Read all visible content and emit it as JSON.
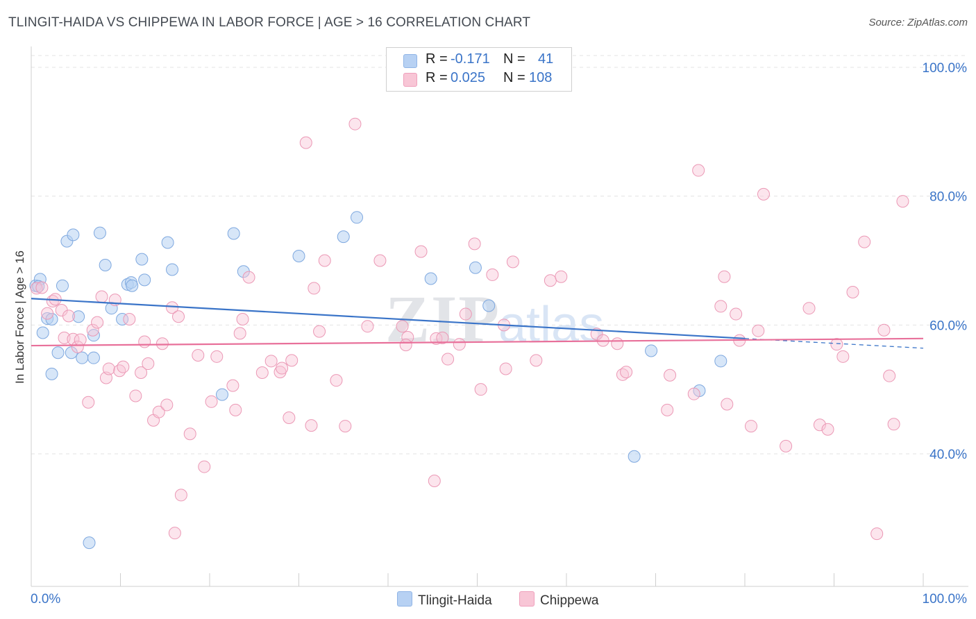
{
  "header": {
    "title": "TLINGIT-HAIDA VS CHIPPEWA IN LABOR FORCE | AGE > 16 CORRELATION CHART",
    "source": "Source: ZipAtlas.com"
  },
  "legend": {
    "r_label": "R =",
    "n_label": "N =",
    "rows": [
      {
        "r": "-0.171",
        "n": "41",
        "color": "#9fc3ef"
      },
      {
        "r": "0.025",
        "n": "108",
        "color": "#f5b3c8"
      }
    ]
  },
  "watermark": {
    "zip": "ZIP",
    "atlas": "atlas"
  },
  "colors": {
    "blue": "#3a74c8",
    "pink": "#e8709a",
    "blue_fill": "#b7d1f3",
    "pink_fill": "#f8c6d6"
  },
  "chart_data": {
    "type": "scatter",
    "title": "TLINGIT-HAIDA VS CHIPPEWA IN LABOR FORCE | AGE > 16 CORRELATION CHART",
    "ylabel": "In Labor Force | Age > 16",
    "xlabel": "",
    "xlim": [
      0,
      100
    ],
    "ylim": [
      20,
      102
    ],
    "x_tick_labels": [
      "0.0%",
      "100.0%"
    ],
    "y_tick_labels": [
      {
        "value": 100,
        "label": "100.0%"
      },
      {
        "value": 80,
        "label": "80.0%"
      },
      {
        "value": 60,
        "label": "60.0%"
      },
      {
        "value": 40,
        "label": "40.0%"
      }
    ],
    "grid": true,
    "legend_position": "top-center",
    "series": [
      {
        "name": "Tlingit-Haida",
        "trend": {
          "x": [
            0,
            80
          ],
          "y": [
            64.1,
            57.9
          ],
          "dash_to": [
            100,
            56.4
          ]
        },
        "points": [
          [
            0.5,
            66.1
          ],
          [
            1,
            67.1
          ],
          [
            0.8,
            66.0
          ],
          [
            1.3,
            58.8
          ],
          [
            1.8,
            61.0
          ],
          [
            2.3,
            52.4
          ],
          [
            2.3,
            60.9
          ],
          [
            3,
            55.7
          ],
          [
            3.5,
            66.1
          ],
          [
            4,
            73
          ],
          [
            4.5,
            55.7
          ],
          [
            4.7,
            74
          ],
          [
            5.3,
            61.3
          ],
          [
            5.7,
            54.9
          ],
          [
            6.5,
            26.2
          ],
          [
            7,
            58.4
          ],
          [
            7,
            54.9
          ],
          [
            7.7,
            74.3
          ],
          [
            8.3,
            69.3
          ],
          [
            9,
            62.6
          ],
          [
            10.2,
            60.9
          ],
          [
            10.8,
            66.3
          ],
          [
            11.2,
            66.6
          ],
          [
            11.3,
            66.1
          ],
          [
            12.4,
            70.2
          ],
          [
            12.7,
            67
          ],
          [
            15.3,
            72.8
          ],
          [
            15.8,
            68.6
          ],
          [
            21.4,
            49.2
          ],
          [
            22.7,
            74.2
          ],
          [
            23.8,
            68.3
          ],
          [
            30,
            70.7
          ],
          [
            35,
            73.7
          ],
          [
            36.5,
            76.7
          ],
          [
            44.8,
            67.2
          ],
          [
            49.8,
            68.9
          ],
          [
            51.3,
            63
          ],
          [
            67.6,
            39.6
          ],
          [
            69.5,
            56
          ],
          [
            77.3,
            54.4
          ],
          [
            74.9,
            49.8
          ]
        ]
      },
      {
        "name": "Chippewa",
        "trend": {
          "x": [
            0,
            100
          ],
          "y": [
            56.8,
            57.9
          ]
        },
        "points": [
          [
            0.6,
            65.7
          ],
          [
            1.2,
            65.8
          ],
          [
            1.8,
            61.8
          ],
          [
            2.4,
            63.7
          ],
          [
            2.7,
            64.0
          ],
          [
            3.4,
            62.3
          ],
          [
            3.7,
            58.0
          ],
          [
            4.2,
            61.4
          ],
          [
            4.7,
            57.8
          ],
          [
            5.2,
            56.6
          ],
          [
            5.5,
            57.7
          ],
          [
            6.4,
            48.0
          ],
          [
            6.9,
            59.2
          ],
          [
            7.4,
            60.4
          ],
          [
            7.9,
            64.4
          ],
          [
            8.4,
            51.8
          ],
          [
            8.7,
            53.2
          ],
          [
            9.4,
            63.9
          ],
          [
            9.9,
            52.9
          ],
          [
            10.3,
            53.5
          ],
          [
            11,
            60.9
          ],
          [
            11.7,
            49.0
          ],
          [
            12.3,
            52.6
          ],
          [
            12.7,
            57.4
          ],
          [
            13.1,
            54.0
          ],
          [
            13.7,
            45.2
          ],
          [
            14.3,
            46.5
          ],
          [
            14.7,
            57.1
          ],
          [
            15.2,
            47.6
          ],
          [
            15.8,
            62.7
          ],
          [
            16.1,
            27.7
          ],
          [
            16.5,
            61.3
          ],
          [
            16.8,
            33.6
          ],
          [
            17.8,
            43.1
          ],
          [
            18.7,
            55.3
          ],
          [
            19.4,
            38.0
          ],
          [
            20.2,
            48.1
          ],
          [
            20.8,
            55.1
          ],
          [
            22.6,
            50.6
          ],
          [
            22.9,
            46.8
          ],
          [
            23.4,
            58.7
          ],
          [
            23.7,
            60.9
          ],
          [
            24.4,
            67.4
          ],
          [
            25.9,
            52.6
          ],
          [
            26.9,
            54.4
          ],
          [
            27.9,
            52.7
          ],
          [
            28.1,
            53.3
          ],
          [
            28.9,
            45.6
          ],
          [
            29.2,
            54.5
          ],
          [
            30.8,
            88.3
          ],
          [
            31.4,
            44.4
          ],
          [
            31.7,
            65.7
          ],
          [
            32.3,
            59.0
          ],
          [
            32.9,
            70.0
          ],
          [
            34.2,
            51.4
          ],
          [
            36.3,
            91.2
          ],
          [
            37.7,
            59.8
          ],
          [
            39.1,
            70.0
          ],
          [
            41.6,
            59.8
          ],
          [
            42.2,
            58.1
          ],
          [
            43.7,
            71.4
          ],
          [
            45.2,
            35.8
          ],
          [
            45.4,
            57.9
          ],
          [
            46.1,
            58.0
          ],
          [
            46.7,
            54.7
          ],
          [
            48,
            57.0
          ],
          [
            48.7,
            61.7
          ],
          [
            49.7,
            72.6
          ],
          [
            50.4,
            50.0
          ],
          [
            51.7,
            67.8
          ],
          [
            53,
            60.0
          ],
          [
            53.2,
            53.2
          ],
          [
            54,
            69.8
          ],
          [
            56.6,
            54.5
          ],
          [
            58.2,
            66.9
          ],
          [
            59.4,
            67.5
          ],
          [
            63.4,
            58.6
          ],
          [
            64.1,
            57.6
          ],
          [
            65.7,
            57.1
          ],
          [
            66.3,
            52.3
          ],
          [
            66.7,
            52.7
          ],
          [
            71.3,
            46.8
          ],
          [
            71.6,
            52.2
          ],
          [
            74.3,
            49.3
          ],
          [
            74.8,
            84.0
          ],
          [
            77.3,
            62.9
          ],
          [
            77.7,
            67.5
          ],
          [
            78,
            47.7
          ],
          [
            79,
            61.7
          ],
          [
            79.4,
            57.6
          ],
          [
            80.7,
            44.3
          ],
          [
            81.5,
            59.1
          ],
          [
            82.1,
            80.3
          ],
          [
            84.6,
            41.2
          ],
          [
            87.2,
            62.6
          ],
          [
            88.4,
            44.5
          ],
          [
            89.3,
            43.8
          ],
          [
            90.3,
            57.0
          ],
          [
            91,
            55.1
          ],
          [
            92.1,
            65.1
          ],
          [
            93.4,
            72.9
          ],
          [
            94.8,
            27.6
          ],
          [
            95.6,
            59.2
          ],
          [
            96.2,
            52.1
          ],
          [
            96.7,
            44.6
          ],
          [
            97.7,
            79.2
          ],
          [
            42,
            56.9
          ],
          [
            35.2,
            44.3
          ]
        ]
      }
    ]
  },
  "bottom_legend": [
    {
      "label": "Tlingit-Haida"
    },
    {
      "label": "Chippewa"
    }
  ]
}
